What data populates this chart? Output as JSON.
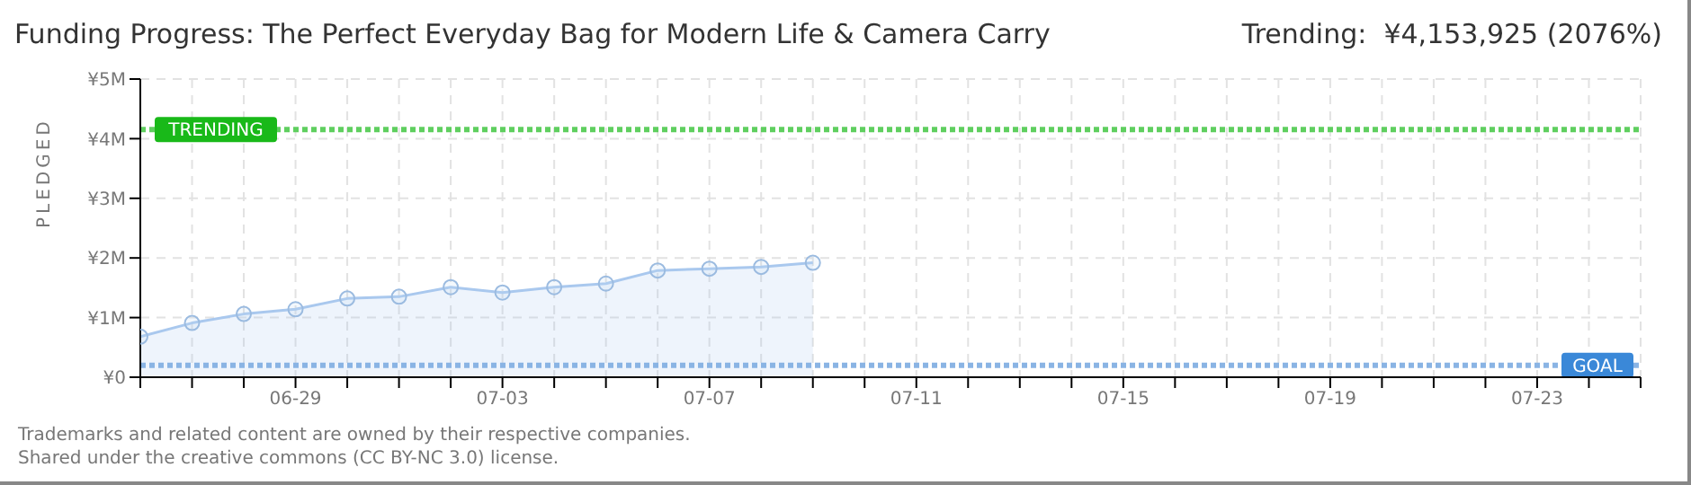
{
  "chart_data": {
    "type": "area",
    "title": "Funding Progress: The Perfect Everyday Bag for Modern Life & Camera Carry",
    "subtitle": "Trending:  ¥4,153,925 (2076%)",
    "ylabel": "PLEDGED",
    "categories": [
      null,
      null,
      null,
      "06-29",
      null,
      null,
      null,
      "07-03",
      null,
      null,
      null,
      "07-07",
      null,
      null,
      null,
      "07-11",
      null,
      null,
      null,
      "07-15",
      null,
      null,
      null,
      "07-19",
      null,
      null,
      null,
      "07-23",
      null,
      null
    ],
    "series": [
      {
        "color": "#a9c8ee",
        "values": [
          0.68,
          0.91,
          1.06,
          1.14,
          1.32,
          1.35,
          1.51,
          1.42,
          1.51,
          1.57,
          1.79,
          1.82,
          1.85,
          1.92,
          null,
          null,
          null,
          null,
          null,
          null,
          null,
          null,
          null,
          null,
          null,
          null,
          null,
          null,
          null,
          null
        ]
      }
    ],
    "ylim": [
      0,
      5
    ],
    "yticks": [
      {
        "value": 0,
        "label": "¥0"
      },
      {
        "value": 1,
        "label": "¥1M"
      },
      {
        "value": 2,
        "label": "¥2M"
      },
      {
        "value": 3,
        "label": "¥3M"
      },
      {
        "value": 4,
        "label": "¥4M"
      },
      {
        "value": 5,
        "label": "¥5M"
      }
    ],
    "grid": true,
    "marker": "circle",
    "legend": false,
    "ref_lines": [
      {
        "axis": "y",
        "value": 4.153925,
        "label": "TRENDING",
        "color": "#5fcf5f",
        "line_style": "dotted"
      },
      {
        "axis": "y",
        "value": 0.2,
        "label": "GOAL",
        "color": "#8ab4e4",
        "line_style": "dotted"
      }
    ],
    "annotations": [
      "Trademarks and related content are owned by their respective companies.",
      "Shared under the creative commons (CC BY-NC 3.0) license."
    ]
  }
}
